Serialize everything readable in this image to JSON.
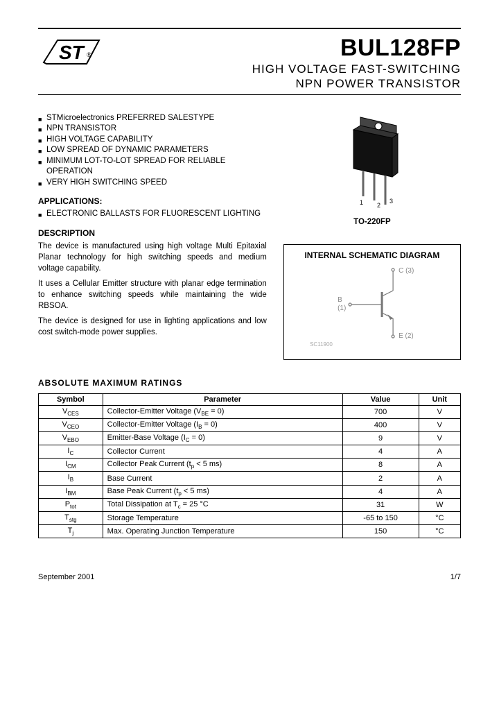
{
  "header": {
    "part_number": "BUL128FP",
    "subtitle_line1": "HIGH VOLTAGE FAST-SWITCHING",
    "subtitle_line2": "NPN POWER TRANSISTOR"
  },
  "features": [
    "STMicroelectronics PREFERRED SALESTYPE",
    "NPN TRANSISTOR",
    "HIGH VOLTAGE CAPABILITY",
    "LOW SPREAD OF DYNAMIC PARAMETERS",
    "MINIMUM LOT-TO-LOT SPREAD FOR RELIABLE OPERATION",
    "VERY HIGH SWITCHING SPEED"
  ],
  "applications": {
    "heading": "APPLICATIONS:",
    "items": [
      "ELECTRONIC BALLASTS FOR FLUORESCENT LIGHTING"
    ]
  },
  "description": {
    "heading": "DESCRIPTION",
    "paragraphs": [
      "The device is manufactured using high voltage Multi Epitaxial Planar technology for high switching speeds and medium voltage capability.",
      "It uses a Cellular Emitter structure with planar edge termination to enhance switching speeds while maintaining the wide RBSOA.",
      "The device is designed for use in lighting applications and low cost switch-mode power supplies."
    ]
  },
  "package": {
    "label": "TO-220FP",
    "pins": [
      "1",
      "2",
      "3"
    ]
  },
  "schematic": {
    "title": "INTERNAL SCHEMATIC DIAGRAM",
    "pin_c_label": "C (3)",
    "pin_b_label": "B",
    "pin_b_num": "(1)",
    "pin_e_label": "E (2)",
    "code": "SC11900"
  },
  "ratings": {
    "heading": "ABSOLUTE MAXIMUM RATINGS",
    "columns": [
      "Symbol",
      "Parameter",
      "Value",
      "Unit"
    ],
    "rows": [
      {
        "sym": "V<sub class='sub'>CES</sub>",
        "param": "Collector-Emitter Voltage (V<sub class='sub'>BE</sub> = 0)",
        "value": "700",
        "unit": "V"
      },
      {
        "sym": "V<sub class='sub'>CEO</sub>",
        "param": "Collector-Emitter Voltage (I<sub class='sub'>B</sub> = 0)",
        "value": "400",
        "unit": "V"
      },
      {
        "sym": "V<sub class='sub'>EBO</sub>",
        "param": "Emitter-Base Voltage (I<sub class='sub'>C</sub> = 0)",
        "value": "9",
        "unit": "V"
      },
      {
        "sym": "I<sub class='sub'>C</sub>",
        "param": "Collector Current",
        "value": "4",
        "unit": "A"
      },
      {
        "sym": "I<sub class='sub'>CM</sub>",
        "param": "Collector Peak Current (t<sub class='sub'>p</sub> < 5 ms)",
        "value": "8",
        "unit": "A"
      },
      {
        "sym": "I<sub class='sub'>B</sub>",
        "param": "Base Current",
        "value": "2",
        "unit": "A"
      },
      {
        "sym": "I<sub class='sub'>BM</sub>",
        "param": "Base Peak Current (t<sub class='sub'>p</sub> < 5 ms)",
        "value": "4",
        "unit": "A"
      },
      {
        "sym": "P<sub class='sub'>tot</sub>",
        "param": "Total Dissipation at T<sub class='sub'>c</sub> = 25 °C",
        "value": "31",
        "unit": "W"
      },
      {
        "sym": "T<sub class='sub'>stg</sub>",
        "param": "Storage Temperature",
        "value": "-65 to 150",
        "unit": "°C"
      },
      {
        "sym": "T<sub class='sub'>j</sub>",
        "param": "Max. Operating Junction Temperature",
        "value": "150",
        "unit": "°C"
      }
    ]
  },
  "footer": {
    "date": "September 2001",
    "page": "1/7"
  },
  "colors": {
    "text": "#000000",
    "bg": "#ffffff"
  }
}
